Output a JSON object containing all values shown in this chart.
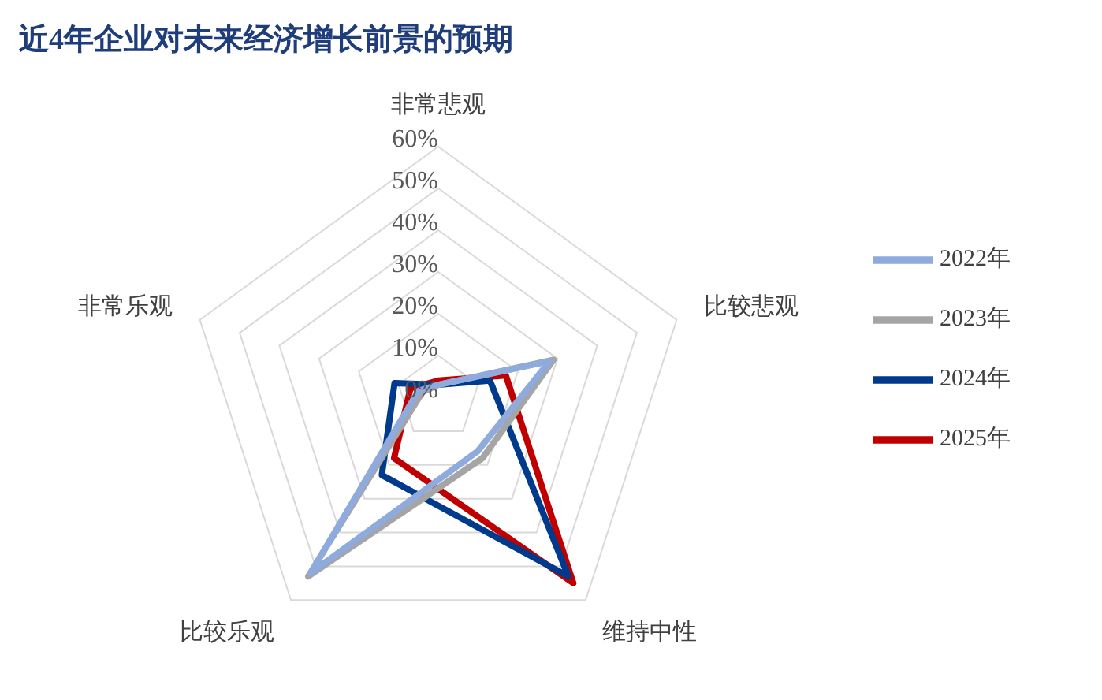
{
  "chart_data": {
    "type": "radar",
    "title": "近4年企业对未来经济增长前景的预期",
    "categories": [
      "非常悲观",
      "比较悲观",
      "维持中性",
      "比较乐观",
      "非常乐观"
    ],
    "ylim": [
      0,
      60
    ],
    "yticks": [
      {
        "value": 0,
        "label": "0%"
      },
      {
        "value": 10,
        "label": "10%"
      },
      {
        "value": 20,
        "label": "20%"
      },
      {
        "value": 30,
        "label": "30%"
      },
      {
        "value": 40,
        "label": "40%"
      },
      {
        "value": 50,
        "label": "50%"
      },
      {
        "value": 60,
        "label": "60%"
      }
    ],
    "grid": true,
    "legend": "right",
    "marker": "none",
    "line_style": "solid",
    "series": [
      {
        "name": "2025年",
        "color": "#c00000",
        "values": [
          4,
          17,
          55,
          18,
          7
        ]
      },
      {
        "name": "2024年",
        "color": "#003a8c",
        "values": [
          3,
          13,
          53,
          23,
          11
        ]
      },
      {
        "name": "2023年",
        "color": "#a5a5a5",
        "values": [
          3,
          29,
          18,
          53,
          4
        ]
      },
      {
        "name": "2022年",
        "color": "#8faadc",
        "values": [
          3,
          28,
          16,
          52,
          5
        ]
      }
    ]
  }
}
